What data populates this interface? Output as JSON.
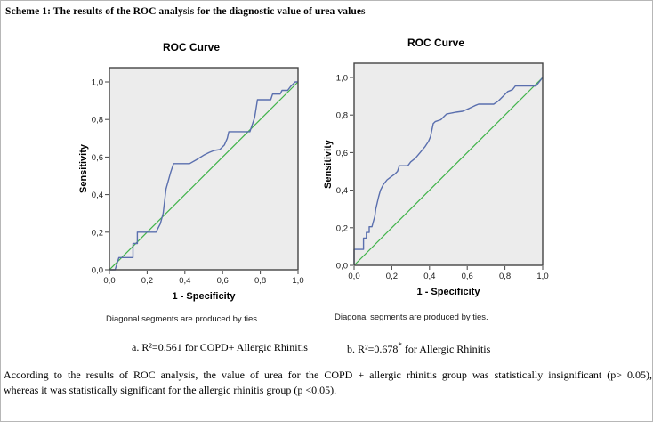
{
  "page": {
    "heading": "Scheme 1: The results of the ROC analysis for the diagnostic value of urea values",
    "body_line1": "According to the results of ROC analysis, the value of urea for the COPD + allergic rhinitis group was statistically insignificant (p> 0.05),",
    "body_line2": "whereas it was statistically significant for the allergic rhinitis group (p <0.05)."
  },
  "footnotes": {
    "a": "a. R²=0.561 for COPD+ Allergic Rhinitis",
    "b_pre": "b. R²=0.678",
    "b_sup": "*",
    "b_post": " for Allergic Rhinitis"
  },
  "chart_data": [
    {
      "type": "line",
      "title": "ROC Curve",
      "group": "COPD+ Allergic Rhinitis",
      "r_squared": "0.561",
      "xlabel": "1 - Specificity",
      "ylabel": "Sensitivity",
      "note": "Diagonal segments are produced by ties.",
      "xlim": [
        0,
        1
      ],
      "ylim": [
        0,
        1
      ],
      "grid": false,
      "legend": "none",
      "ticks": {
        "labels": [
          "0,0",
          "0,2",
          "0,4",
          "0,6",
          "0,8",
          "1,0"
        ],
        "values": [
          0,
          0.2,
          0.4,
          0.6,
          0.8,
          1.0
        ]
      },
      "colors": {
        "plot_bg": "#ececec",
        "frame": "#444444"
      },
      "series": [
        {
          "id": "reference-line",
          "name": "Reference line",
          "color": "#40b34a",
          "width": 1.2,
          "points": [
            [
              0,
              0
            ],
            [
              1,
              1
            ]
          ]
        },
        {
          "id": "roc-curve",
          "name": "ROC curve (urea, COPD+ Allergic Rhinitis)",
          "color": "#5a6fae",
          "width": 1.4,
          "points": [
            [
              0,
              0
            ],
            [
              0.03,
              0
            ],
            [
              0.05,
              0.065
            ],
            [
              0.125,
              0.065
            ],
            [
              0.125,
              0.14
            ],
            [
              0.148,
              0.14
            ],
            [
              0.148,
              0.2
            ],
            [
              0.247,
              0.2
            ],
            [
              0.27,
              0.245
            ],
            [
              0.285,
              0.3
            ],
            [
              0.3,
              0.43
            ],
            [
              0.325,
              0.52
            ],
            [
              0.34,
              0.565
            ],
            [
              0.425,
              0.565
            ],
            [
              0.46,
              0.585
            ],
            [
              0.5,
              0.61
            ],
            [
              0.53,
              0.625
            ],
            [
              0.555,
              0.635
            ],
            [
              0.585,
              0.64
            ],
            [
              0.61,
              0.665
            ],
            [
              0.625,
              0.7
            ],
            [
              0.633,
              0.735
            ],
            [
              0.745,
              0.735
            ],
            [
              0.77,
              0.81
            ],
            [
              0.785,
              0.905
            ],
            [
              0.855,
              0.905
            ],
            [
              0.865,
              0.935
            ],
            [
              0.905,
              0.935
            ],
            [
              0.915,
              0.955
            ],
            [
              0.945,
              0.955
            ],
            [
              0.96,
              0.975
            ],
            [
              0.985,
              1.0
            ],
            [
              1.0,
              1.0
            ]
          ]
        }
      ]
    },
    {
      "type": "line",
      "title": "ROC Curve",
      "group": "Allergic Rhinitis",
      "r_squared": "0.678*",
      "xlabel": "1 - Specificity",
      "ylabel": "Sensitivity",
      "note": "Diagonal segments are produced by ties.",
      "xlim": [
        0,
        1
      ],
      "ylim": [
        0,
        1
      ],
      "grid": false,
      "legend": "none",
      "ticks": {
        "labels": [
          "0,0",
          "0,2",
          "0,4",
          "0,6",
          "0,8",
          "1,0"
        ],
        "values": [
          0,
          0.2,
          0.4,
          0.6,
          0.8,
          1.0
        ]
      },
      "colors": {
        "plot_bg": "#ececec",
        "frame": "#444444"
      },
      "series": [
        {
          "id": "reference-line",
          "name": "Reference line",
          "color": "#40b34a",
          "width": 1.2,
          "points": [
            [
              0,
              0
            ],
            [
              1,
              1
            ]
          ]
        },
        {
          "id": "roc-curve",
          "name": "ROC curve (urea, Allergic Rhinitis)",
          "color": "#5a6fae",
          "width": 1.4,
          "points": [
            [
              0,
              0
            ],
            [
              0,
              0.085
            ],
            [
              0.05,
              0.085
            ],
            [
              0.05,
              0.145
            ],
            [
              0.065,
              0.145
            ],
            [
              0.065,
              0.175
            ],
            [
              0.08,
              0.175
            ],
            [
              0.08,
              0.205
            ],
            [
              0.095,
              0.205
            ],
            [
              0.1,
              0.225
            ],
            [
              0.11,
              0.26
            ],
            [
              0.115,
              0.3
            ],
            [
              0.13,
              0.365
            ],
            [
              0.14,
              0.4
            ],
            [
              0.155,
              0.43
            ],
            [
              0.175,
              0.455
            ],
            [
              0.195,
              0.47
            ],
            [
              0.215,
              0.485
            ],
            [
              0.23,
              0.5
            ],
            [
              0.24,
              0.53
            ],
            [
              0.285,
              0.53
            ],
            [
              0.3,
              0.55
            ],
            [
              0.325,
              0.57
            ],
            [
              0.35,
              0.6
            ],
            [
              0.375,
              0.63
            ],
            [
              0.395,
              0.66
            ],
            [
              0.405,
              0.685
            ],
            [
              0.42,
              0.755
            ],
            [
              0.43,
              0.765
            ],
            [
              0.46,
              0.775
            ],
            [
              0.475,
              0.79
            ],
            [
              0.49,
              0.805
            ],
            [
              0.54,
              0.815
            ],
            [
              0.575,
              0.82
            ],
            [
              0.61,
              0.835
            ],
            [
              0.64,
              0.85
            ],
            [
              0.66,
              0.858
            ],
            [
              0.74,
              0.858
            ],
            [
              0.765,
              0.875
            ],
            [
              0.79,
              0.9
            ],
            [
              0.815,
              0.925
            ],
            [
              0.84,
              0.935
            ],
            [
              0.855,
              0.955
            ],
            [
              0.965,
              0.955
            ],
            [
              1.0,
              1.0
            ]
          ]
        }
      ]
    }
  ]
}
